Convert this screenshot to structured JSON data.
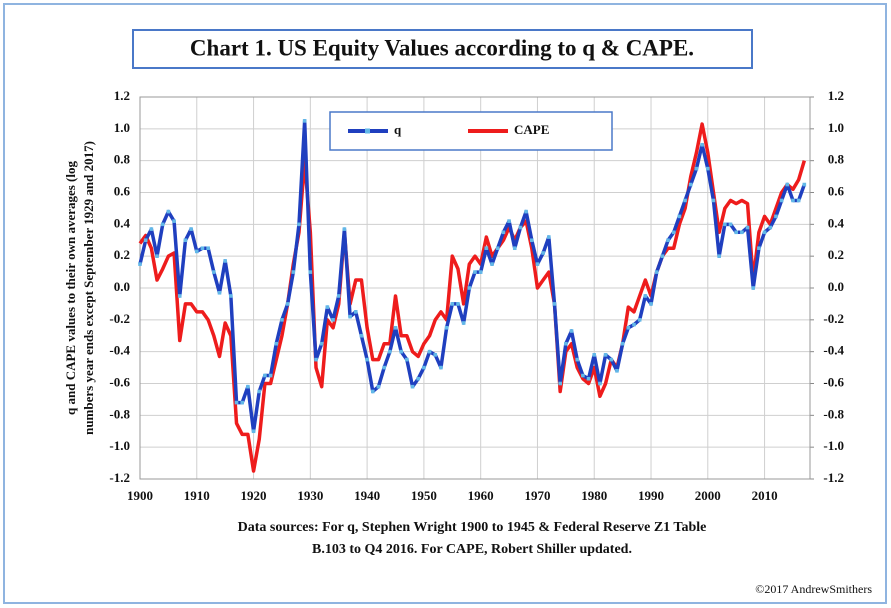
{
  "chart_data": {
    "type": "line",
    "title": "Chart 1. US Equity Values according to q & CAPE.",
    "ylabel": [
      "q and CAPE values to their own averages (log",
      "numbers year ends except September 1929 and 2017)"
    ],
    "source": [
      "Data sources: For q, Stephen Wright 1900 to 1945 & Federal Reserve Z1 Table",
      "B.103 to Q4 2016. For CAPE, Robert Shiller updated."
    ],
    "credit": "©2017 AndrewSmithers",
    "x": [
      1900,
      1901,
      1902,
      1903,
      1904,
      1905,
      1906,
      1907,
      1908,
      1909,
      1910,
      1911,
      1912,
      1913,
      1914,
      1915,
      1916,
      1917,
      1918,
      1919,
      1920,
      1921,
      1922,
      1923,
      1924,
      1925,
      1926,
      1927,
      1928,
      1929,
      1930,
      1931,
      1932,
      1933,
      1934,
      1935,
      1936,
      1937,
      1938,
      1939,
      1940,
      1941,
      1942,
      1943,
      1944,
      1945,
      1946,
      1947,
      1948,
      1949,
      1950,
      1951,
      1952,
      1953,
      1954,
      1955,
      1956,
      1957,
      1958,
      1959,
      1960,
      1961,
      1962,
      1963,
      1964,
      1965,
      1966,
      1967,
      1968,
      1969,
      1970,
      1971,
      1972,
      1973,
      1974,
      1975,
      1976,
      1977,
      1978,
      1979,
      1980,
      1981,
      1982,
      1983,
      1984,
      1985,
      1986,
      1987,
      1988,
      1989,
      1990,
      1991,
      1992,
      1993,
      1994,
      1995,
      1996,
      1997,
      1998,
      1999,
      2000,
      2001,
      2002,
      2003,
      2004,
      2005,
      2006,
      2007,
      2008,
      2009,
      2010,
      2011,
      2012,
      2013,
      2014,
      2015,
      2016,
      2017
    ],
    "series": [
      {
        "name": "q",
        "color": "#1f3fbf",
        "marker_color": "#62b8e8",
        "values": [
          0.15,
          0.3,
          0.37,
          0.2,
          0.4,
          0.48,
          0.42,
          -0.05,
          0.3,
          0.37,
          0.23,
          0.25,
          0.25,
          0.1,
          -0.03,
          0.17,
          -0.05,
          -0.72,
          -0.72,
          -0.62,
          -0.9,
          -0.65,
          -0.55,
          -0.55,
          -0.35,
          -0.2,
          -0.1,
          0.1,
          0.4,
          1.05,
          0.1,
          -0.45,
          -0.35,
          -0.12,
          -0.2,
          -0.05,
          0.37,
          -0.18,
          -0.15,
          -0.3,
          -0.45,
          -0.65,
          -0.62,
          -0.5,
          -0.4,
          -0.25,
          -0.4,
          -0.45,
          -0.62,
          -0.57,
          -0.5,
          -0.4,
          -0.42,
          -0.5,
          -0.25,
          -0.1,
          -0.1,
          -0.22,
          0.0,
          0.1,
          0.1,
          0.25,
          0.15,
          0.25,
          0.35,
          0.42,
          0.25,
          0.38,
          0.48,
          0.3,
          0.15,
          0.22,
          0.32,
          -0.1,
          -0.6,
          -0.35,
          -0.27,
          -0.45,
          -0.55,
          -0.57,
          -0.42,
          -0.6,
          -0.42,
          -0.45,
          -0.52,
          -0.35,
          -0.25,
          -0.23,
          -0.2,
          -0.05,
          -0.1,
          0.1,
          0.2,
          0.3,
          0.35,
          0.45,
          0.55,
          0.65,
          0.75,
          0.9,
          0.75,
          0.55,
          0.2,
          0.4,
          0.4,
          0.35,
          0.35,
          0.38,
          0.0,
          0.25,
          0.35,
          0.38,
          0.45,
          0.55,
          0.65,
          0.55,
          0.55,
          0.65
        ]
      },
      {
        "name": "CAPE",
        "color": "#ee1c1c",
        "values": [
          0.28,
          0.33,
          0.25,
          0.05,
          0.12,
          0.2,
          0.22,
          -0.33,
          -0.1,
          -0.1,
          -0.15,
          -0.15,
          -0.2,
          -0.3,
          -0.43,
          -0.22,
          -0.3,
          -0.85,
          -0.92,
          -0.92,
          -1.15,
          -0.95,
          -0.6,
          -0.6,
          -0.45,
          -0.3,
          -0.1,
          0.15,
          0.35,
          0.8,
          0.35,
          -0.5,
          -0.62,
          -0.2,
          -0.25,
          -0.1,
          0.35,
          -0.1,
          0.05,
          0.05,
          -0.25,
          -0.45,
          -0.45,
          -0.35,
          -0.35,
          -0.05,
          -0.3,
          -0.3,
          -0.4,
          -0.43,
          -0.35,
          -0.3,
          -0.2,
          -0.15,
          -0.2,
          0.2,
          0.12,
          -0.1,
          0.15,
          0.2,
          0.15,
          0.32,
          0.2,
          0.25,
          0.3,
          0.38,
          0.3,
          0.38,
          0.42,
          0.25,
          0.0,
          0.05,
          0.1,
          -0.1,
          -0.65,
          -0.4,
          -0.35,
          -0.5,
          -0.57,
          -0.6,
          -0.5,
          -0.68,
          -0.6,
          -0.45,
          -0.5,
          -0.35,
          -0.12,
          -0.15,
          -0.05,
          0.05,
          -0.05,
          0.1,
          0.2,
          0.25,
          0.25,
          0.4,
          0.5,
          0.7,
          0.85,
          1.03,
          0.85,
          0.6,
          0.35,
          0.5,
          0.55,
          0.53,
          0.55,
          0.53,
          0.05,
          0.35,
          0.45,
          0.4,
          0.5,
          0.6,
          0.65,
          0.62,
          0.68,
          0.8
        ]
      }
    ],
    "xlim": [
      1900,
      2018
    ],
    "xticks": [
      1900,
      1910,
      1920,
      1930,
      1940,
      1950,
      1960,
      1970,
      1980,
      1990,
      2000,
      2010
    ],
    "ylim": [
      -1.2,
      1.2
    ],
    "yticks": [
      {
        "value": 1.2,
        "label": "1.2"
      },
      {
        "value": 1,
        "label": "1.0"
      },
      {
        "value": 0.8,
        "label": "0.8"
      },
      {
        "value": 0.6,
        "label": "0.6"
      },
      {
        "value": 0.4,
        "label": "0.4"
      },
      {
        "value": 0.2,
        "label": "0.2"
      },
      {
        "value": 0,
        "label": "0.0"
      },
      {
        "value": -0.2,
        "label": "-0.2"
      },
      {
        "value": -0.4,
        "label": "-0.4"
      },
      {
        "value": -0.6,
        "label": "-0.6"
      },
      {
        "value": -0.8,
        "label": "-0.8"
      },
      {
        "value": -1,
        "label": "-1.0"
      },
      {
        "value": -1.2,
        "label": "-1.2"
      }
    ],
    "y2lim": [
      -1.2,
      1.2
    ],
    "y2ticks": [
      {
        "value": 1.2,
        "label": "1.2"
      },
      {
        "value": 1,
        "label": "1.0"
      },
      {
        "value": 0.8,
        "label": "0.8"
      },
      {
        "value": 0.6,
        "label": "0.6"
      },
      {
        "value": 0.4,
        "label": "0.4"
      },
      {
        "value": 0.2,
        "label": "0.2"
      },
      {
        "value": 0,
        "label": "0.0"
      },
      {
        "value": -0.2,
        "label": "-0.2"
      },
      {
        "value": -0.4,
        "label": "-0.4"
      },
      {
        "value": -0.6,
        "label": "-0.6"
      },
      {
        "value": -0.8,
        "label": "-0.8"
      },
      {
        "value": -1,
        "label": "-1.0"
      },
      {
        "value": -1.2,
        "label": "-1.2"
      }
    ],
    "grid": true,
    "legend": "top"
  }
}
